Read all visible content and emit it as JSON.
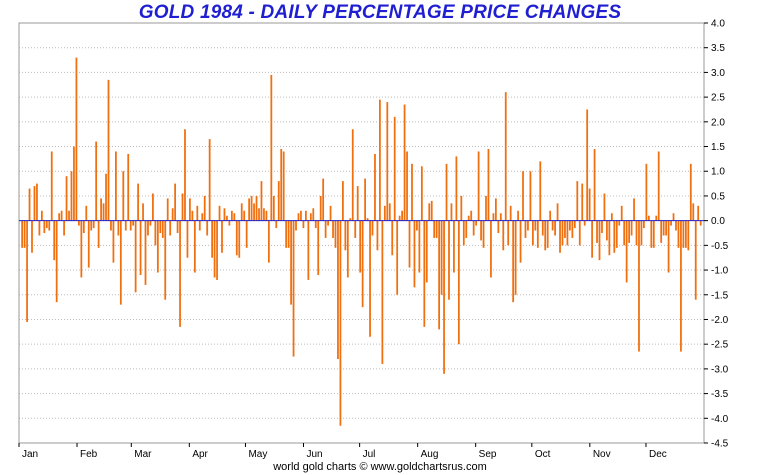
{
  "chart_data": {
    "type": "bar",
    "title": "GOLD 1984 - DAILY PERCENTAGE PRICE CHANGES",
    "footer": "world gold charts © www.goldchartsrus.com",
    "xlabel": "",
    "ylabel": "",
    "ylim": [
      -4.5,
      4.0
    ],
    "y_ticks": [
      4.0,
      3.5,
      3.0,
      2.5,
      2.0,
      1.5,
      1.0,
      0.5,
      0.0,
      -0.5,
      -1.0,
      -1.5,
      -2.0,
      -2.5,
      -3.0,
      -3.5,
      -4.0,
      -4.5
    ],
    "month_labels": [
      "Jan",
      "Feb",
      "Mar",
      "Apr",
      "May",
      "Jun",
      "Jul",
      "Aug",
      "Sep",
      "Oct",
      "Nov",
      "Dec"
    ],
    "grid": "horizontal dotted",
    "y_axis_position": "right",
    "colors": {
      "bar": "#f07010",
      "zero_line": "#1f1fd1",
      "title": "#1f1fd1",
      "grid": "#bbbbbb"
    },
    "values": [
      -0.55,
      -0.55,
      -2.05,
      0.65,
      -0.65,
      0.7,
      0.75,
      -0.3,
      0.2,
      -0.25,
      -0.15,
      -0.2,
      1.4,
      -0.8,
      -1.65,
      0.15,
      0.2,
      -0.3,
      0.9,
      0.2,
      1.0,
      1.5,
      3.3,
      -0.1,
      -1.15,
      -0.25,
      0.3,
      -0.95,
      -0.2,
      -0.15,
      1.6,
      -0.55,
      0.45,
      0.35,
      0.95,
      2.85,
      -0.2,
      -0.85,
      1.4,
      -0.3,
      -1.7,
      1.0,
      -0.2,
      1.35,
      -0.2,
      -0.1,
      -1.45,
      0.75,
      -1.1,
      0.35,
      -1.3,
      -0.3,
      -0.1,
      0.55,
      -0.5,
      -1.05,
      -0.25,
      -0.35,
      -1.6,
      0.45,
      -0.3,
      0.25,
      0.75,
      -0.25,
      -2.15,
      0.55,
      1.85,
      -0.75,
      0.45,
      0.2,
      -1.05,
      0.3,
      -0.2,
      0.15,
      0.5,
      -0.3,
      1.65,
      -0.75,
      -1.15,
      -1.2,
      0.3,
      -0.65,
      0.25,
      0.1,
      -0.1,
      0.2,
      0.15,
      -0.7,
      -0.75,
      0.35,
      0.2,
      -0.55,
      0.45,
      0.5,
      0.35,
      0.5,
      0.25,
      0.8,
      0.25,
      0.2,
      -0.85,
      2.95,
      0.5,
      -0.15,
      0.8,
      1.45,
      1.4,
      -0.55,
      -0.55,
      -1.7,
      -2.75,
      -0.2,
      0.15,
      0.2,
      -0.15,
      0.2,
      -1.2,
      0.15,
      0.25,
      -0.15,
      -1.1,
      0.5,
      0.85,
      -0.35,
      -0.1,
      0.3,
      -0.35,
      -0.55,
      -2.8,
      -4.15,
      0.8,
      -0.6,
      -1.15,
      0.05,
      1.85,
      -0.35,
      0.7,
      -1.05,
      -1.75,
      0.85,
      0.05,
      -2.35,
      -0.3,
      1.35,
      -0.6,
      2.45,
      -2.9,
      0.3,
      2.4,
      0.35,
      -0.7,
      2.1,
      -1.5,
      0.1,
      0.2,
      2.35,
      1.4,
      -0.95,
      1.15,
      -1.35,
      -0.2,
      -1.05,
      1.1,
      -2.15,
      -1.25,
      0.35,
      0.4,
      -0.35,
      -0.35,
      -2.2,
      -1.5,
      -3.1,
      1.15,
      -1.6,
      0.35,
      -1.05,
      1.3,
      -2.5,
      0.5,
      -0.5,
      -0.35,
      0.1,
      0.2,
      -0.3,
      -0.1,
      1.4,
      -0.4,
      -0.55,
      0.5,
      1.45,
      -1.15,
      0.15,
      0.45,
      -0.25,
      0.15,
      -0.6,
      2.6,
      -0.5,
      0.3,
      -1.65,
      -1.5,
      0.2,
      -0.85,
      1.0,
      -0.35,
      -0.2,
      1.0,
      -0.5,
      -0.2,
      -0.55,
      1.2,
      -0.3,
      -0.6,
      -0.55,
      0.2,
      -0.2,
      -0.3,
      0.35,
      -0.65,
      -0.5,
      -0.35,
      -0.5,
      -0.2,
      -0.35,
      -0.15,
      0.8,
      -0.5,
      0.75,
      -0.1,
      2.25,
      0.65,
      -0.75,
      1.45,
      -0.45,
      -0.8,
      -0.25,
      0.55,
      -0.4,
      -0.7,
      0.15,
      -0.65,
      -0.55,
      -0.1,
      0.3,
      -0.5,
      -1.25,
      -0.45,
      -0.3,
      0.45,
      -0.5,
      -2.65,
      -0.5,
      -0.15,
      1.15,
      0.1,
      -0.55,
      -0.55,
      0.1,
      1.4,
      -0.45,
      -0.3,
      -0.3,
      -1.05,
      -0.1,
      0.15,
      -0.2,
      -0.55,
      -2.65,
      -0.55,
      -0.55,
      -0.6,
      1.15,
      0.35,
      -1.6,
      0.3,
      -0.1
    ]
  }
}
